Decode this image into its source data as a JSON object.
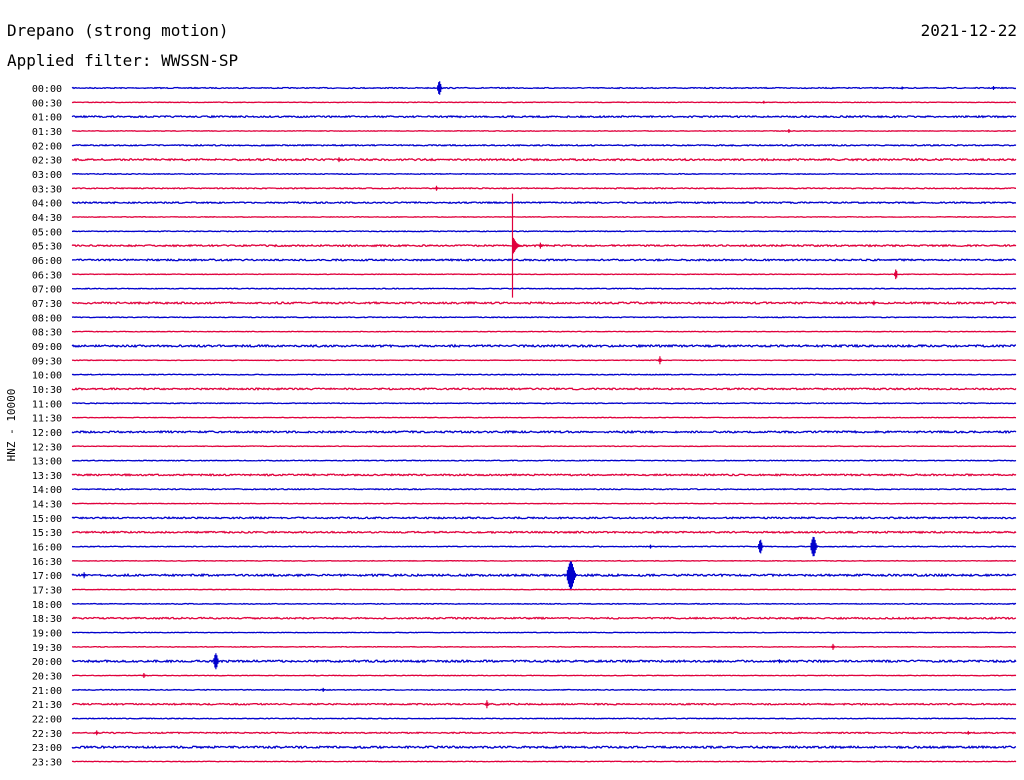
{
  "header": {
    "station": "Drepano (strong motion)",
    "date": "2021-12-22",
    "filter": "Applied filter: WWSSN-SP"
  },
  "chart_data": {
    "type": "line",
    "title": "Drepano (strong motion)",
    "ylabel": "HNZ - 10000",
    "xlabel": "",
    "rows": [
      "00:00",
      "00:30",
      "01:00",
      "01:30",
      "02:00",
      "02:30",
      "03:00",
      "03:30",
      "04:00",
      "04:30",
      "05:00",
      "05:30",
      "06:00",
      "06:30",
      "07:00",
      "07:30",
      "08:00",
      "08:30",
      "09:00",
      "09:30",
      "10:00",
      "10:30",
      "11:00",
      "11:30",
      "12:00",
      "12:30",
      "13:00",
      "13:30",
      "14:00",
      "14:30",
      "15:00",
      "15:30",
      "16:00",
      "16:30",
      "17:00",
      "17:30",
      "18:00",
      "18:30",
      "19:00",
      "19:30",
      "20:00",
      "20:30",
      "21:00",
      "21:30",
      "22:00",
      "22:30",
      "23:00",
      "23:30"
    ],
    "x_range_minutes": [
      0,
      30
    ],
    "colors": {
      "even": "#0000cc",
      "odd": "#e0003c"
    },
    "noise": [
      1,
      0.6,
      1.6,
      0.6,
      1.2,
      1.8,
      0.8,
      1,
      1.4,
      0.6,
      0.8,
      1.6,
      1.6,
      0.6,
      0.8,
      1.8,
      0.8,
      0.6,
      2,
      0.6,
      0.8,
      1.6,
      0.8,
      0.6,
      1.8,
      0.6,
      0.8,
      1.6,
      1,
      0.6,
      1.6,
      1.6,
      0.8,
      0.6,
      2,
      0.6,
      0.8,
      1.6,
      0.6,
      0.6,
      2,
      0.6,
      0.8,
      1.4,
      0.8,
      1.2,
      2,
      0.6
    ],
    "events": [
      {
        "row": 0,
        "minute": 11.7,
        "amplitude": 7
      },
      {
        "row": 0,
        "minute": 29.3,
        "amplitude": 2
      },
      {
        "row": 0,
        "minute": 26.4,
        "amplitude": 1.5
      },
      {
        "row": 1,
        "minute": 22,
        "amplitude": 1.5
      },
      {
        "row": 3,
        "minute": 22.8,
        "amplitude": 2
      },
      {
        "row": 5,
        "minute": 8.5,
        "amplitude": 2.5
      },
      {
        "row": 7,
        "minute": 11.6,
        "amplitude": 2.5
      },
      {
        "row": 11,
        "minute": 14,
        "amplitude": 52
      },
      {
        "row": 11,
        "minute": 14.9,
        "amplitude": 3
      },
      {
        "row": 13,
        "minute": 26.2,
        "amplitude": 5
      },
      {
        "row": 15,
        "minute": 25.5,
        "amplitude": 2.5
      },
      {
        "row": 19,
        "minute": 18.7,
        "amplitude": 4
      },
      {
        "row": 32,
        "minute": 18.4,
        "amplitude": 2
      },
      {
        "row": 32,
        "minute": 21.9,
        "amplitude": 7
      },
      {
        "row": 32,
        "minute": 23.6,
        "amplitude": 10
      },
      {
        "row": 34,
        "minute": 15.9,
        "amplitude": 14
      },
      {
        "row": 34,
        "minute": 0.4,
        "amplitude": 3
      },
      {
        "row": 39,
        "minute": 24.2,
        "amplitude": 3
      },
      {
        "row": 40,
        "minute": 4.6,
        "amplitude": 8
      },
      {
        "row": 40,
        "minute": 22.5,
        "amplitude": 2
      },
      {
        "row": 41,
        "minute": 2.3,
        "amplitude": 2.5
      },
      {
        "row": 42,
        "minute": 8,
        "amplitude": 2
      },
      {
        "row": 43,
        "minute": 13.2,
        "amplitude": 4
      },
      {
        "row": 45,
        "minute": 0.8,
        "amplitude": 2.5
      },
      {
        "row": 45,
        "minute": 28.5,
        "amplitude": 2
      }
    ]
  }
}
